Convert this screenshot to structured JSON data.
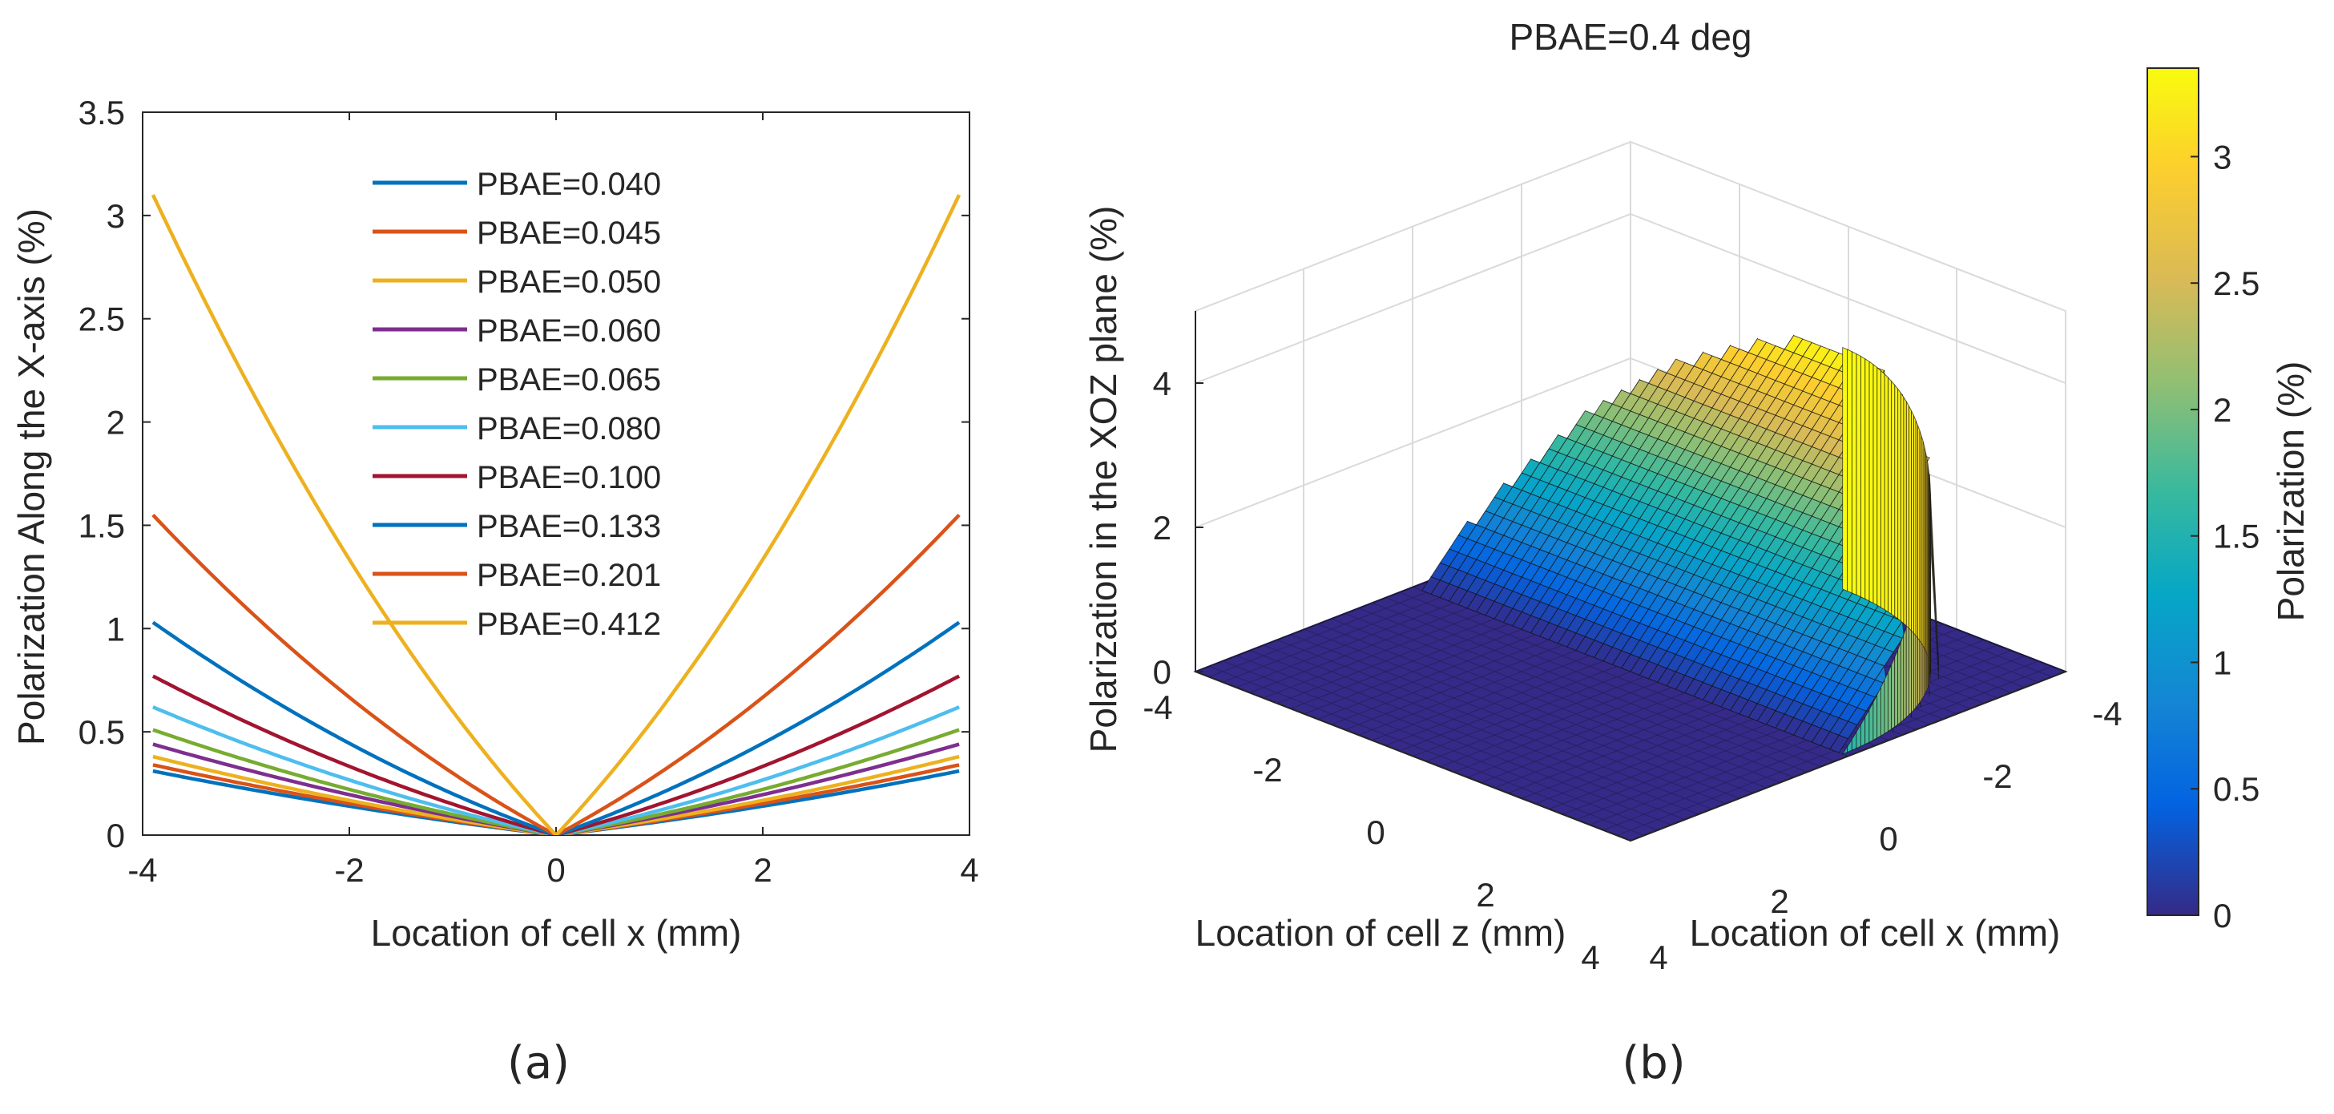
{
  "chart_data": [
    {
      "type": "line",
      "panel_label": "(a)",
      "title": "",
      "xlabel": "Location of cell x (mm)",
      "ylabel": "Polarization Along the X-axis (%)",
      "xlim": [
        -4,
        4
      ],
      "ylim": [
        0,
        3.5
      ],
      "xticks": [
        -4,
        -2,
        0,
        2,
        4
      ],
      "yticks": [
        0,
        0.5,
        1,
        1.5,
        2,
        2.5,
        3,
        3.5
      ],
      "grid": false,
      "legend_position": "top-center",
      "curve_model": "y = a*|x| + b*x^2",
      "x": [
        -3.9,
        -3,
        -2,
        -1,
        0,
        1,
        2,
        3,
        3.9
      ],
      "series": [
        {
          "name": "PBAE=0.040",
          "color": "#0072BD",
          "values": [
            0.31,
            0.221,
            0.137,
            0.065,
            0.0,
            0.065,
            0.137,
            0.221,
            0.31
          ]
        },
        {
          "name": "PBAE=0.045",
          "color": "#D95319",
          "values": [
            0.34,
            0.24,
            0.149,
            0.071,
            0.0,
            0.071,
            0.149,
            0.24,
            0.34
          ]
        },
        {
          "name": "PBAE=0.050",
          "color": "#EDB120",
          "values": [
            0.38,
            0.266,
            0.164,
            0.077,
            0.0,
            0.077,
            0.164,
            0.266,
            0.38
          ]
        },
        {
          "name": "PBAE=0.060",
          "color": "#7E2F8E",
          "values": [
            0.44,
            0.31,
            0.19,
            0.09,
            0.0,
            0.09,
            0.19,
            0.31,
            0.44
          ]
        },
        {
          "name": "PBAE=0.065",
          "color": "#77AC30",
          "values": [
            0.51,
            0.355,
            0.22,
            0.1,
            0.0,
            0.1,
            0.22,
            0.355,
            0.51
          ]
        },
        {
          "name": "PBAE=0.080",
          "color": "#4DBEEE",
          "values": [
            0.62,
            0.43,
            0.265,
            0.12,
            0.0,
            0.12,
            0.265,
            0.43,
            0.62
          ]
        },
        {
          "name": "PBAE=0.100",
          "color": "#A2142F",
          "values": [
            0.77,
            0.535,
            0.33,
            0.15,
            0.0,
            0.15,
            0.33,
            0.535,
            0.77
          ]
        },
        {
          "name": "PBAE=0.133",
          "color": "#0072BD",
          "values": [
            1.03,
            0.715,
            0.44,
            0.2,
            0.0,
            0.2,
            0.44,
            0.715,
            1.03
          ]
        },
        {
          "name": "PBAE=0.201",
          "color": "#D95319",
          "values": [
            1.55,
            1.075,
            0.66,
            0.3,
            0.0,
            0.3,
            0.66,
            1.075,
            1.55
          ]
        },
        {
          "name": "PBAE=0.412",
          "color": "#EDB120",
          "values": [
            3.1,
            2.15,
            1.32,
            0.6,
            0.0,
            0.6,
            1.32,
            2.15,
            3.1
          ]
        }
      ]
    },
    {
      "type": "surface",
      "panel_label": "(b)",
      "title": "PBAE=0.4 deg",
      "xlabel": "Location of cell x (mm)",
      "ylabel": "Location of cell z (mm)",
      "zlabel": "Polarization in the XOZ plane (%)",
      "xlim": [
        -4,
        4
      ],
      "ylim": [
        -4,
        4
      ],
      "zlim": [
        0,
        5
      ],
      "xticks": [
        -4,
        -2,
        0,
        2
      ],
      "zticks_axis": [
        -4,
        -2,
        0,
        2,
        4
      ],
      "zticks": [
        0,
        2,
        4
      ],
      "grid": true,
      "description_values": {
        "max_polarization": 3.35,
        "support_radius_mm": 3.9
      },
      "colorbar": {
        "label": "Polarization (%)",
        "colormap": "parula",
        "range": [
          0,
          3.35
        ],
        "ticks": [
          0,
          0.5,
          1,
          1.5,
          2,
          2.5,
          3
        ]
      }
    }
  ],
  "captions": {
    "a": "(a)",
    "b": "(b)"
  }
}
